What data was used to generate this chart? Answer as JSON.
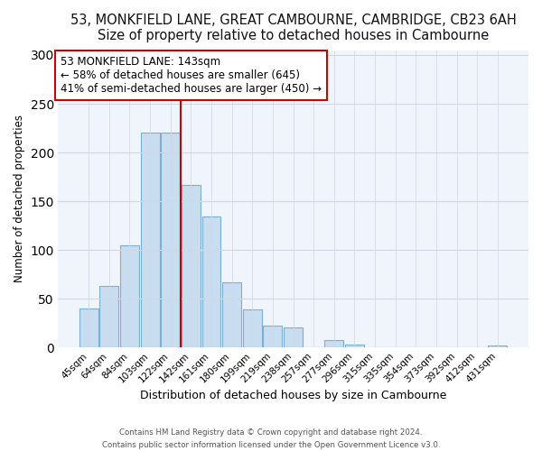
{
  "title": "53, MONKFIELD LANE, GREAT CAMBOURNE, CAMBRIDGE, CB23 6AH",
  "subtitle": "Size of property relative to detached houses in Cambourne",
  "xlabel": "Distribution of detached houses by size in Cambourne",
  "ylabel": "Number of detached properties",
  "bar_labels": [
    "45sqm",
    "64sqm",
    "84sqm",
    "103sqm",
    "122sqm",
    "142sqm",
    "161sqm",
    "180sqm",
    "199sqm",
    "219sqm",
    "238sqm",
    "257sqm",
    "277sqm",
    "296sqm",
    "315sqm",
    "335sqm",
    "354sqm",
    "373sqm",
    "392sqm",
    "412sqm",
    "431sqm"
  ],
  "bar_values": [
    40,
    63,
    105,
    220,
    220,
    167,
    134,
    67,
    39,
    23,
    21,
    0,
    8,
    3,
    0,
    0,
    0,
    0,
    0,
    0,
    2
  ],
  "bar_color": "#c8ddf0",
  "bar_edge_color": "#7ab0d4",
  "vline_x_index": 5,
  "vline_color": "#cc0000",
  "ylim": [
    0,
    305
  ],
  "yticks": [
    0,
    50,
    100,
    150,
    200,
    250,
    300
  ],
  "annotation_title": "53 MONKFIELD LANE: 143sqm",
  "annotation_line1": "← 58% of detached houses are smaller (645)",
  "annotation_line2": "41% of semi-detached houses are larger (450) →",
  "footer_line1": "Contains HM Land Registry data © Crown copyright and database right 2024.",
  "footer_line2": "Contains public sector information licensed under the Open Government Licence v3.0.",
  "plot_bg_color": "#f0f4fb",
  "fig_bg_color": "#ffffff",
  "title_fontsize": 10.5,
  "grid_color": "#d0d8e8"
}
